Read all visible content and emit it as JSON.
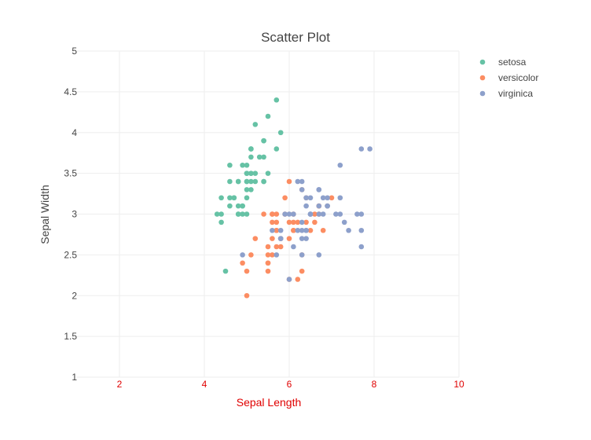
{
  "chart_data": {
    "type": "scatter",
    "title": "Scatter Plot",
    "xlabel": "Sepal Length",
    "ylabel": "Sepal Width",
    "xlim": [
      1,
      10
    ],
    "ylim": [
      1,
      5
    ],
    "x_ticks": [
      2,
      4,
      6,
      8,
      10
    ],
    "y_ticks": [
      1,
      1.5,
      2,
      2.5,
      3,
      3.5,
      4,
      4.5,
      5
    ],
    "x_axis_color": "#e00000",
    "grid": true,
    "legend_position": "top-right",
    "series": [
      {
        "name": "setosa",
        "color": "#66c2a5",
        "points": [
          [
            5.1,
            3.5
          ],
          [
            4.9,
            3.0
          ],
          [
            4.7,
            3.2
          ],
          [
            4.6,
            3.1
          ],
          [
            5.0,
            3.6
          ],
          [
            5.4,
            3.9
          ],
          [
            4.6,
            3.4
          ],
          [
            5.0,
            3.4
          ],
          [
            4.4,
            2.9
          ],
          [
            4.9,
            3.1
          ],
          [
            5.4,
            3.7
          ],
          [
            4.8,
            3.4
          ],
          [
            4.8,
            3.0
          ],
          [
            4.3,
            3.0
          ],
          [
            5.8,
            4.0
          ],
          [
            5.7,
            4.4
          ],
          [
            5.4,
            3.9
          ],
          [
            5.1,
            3.5
          ],
          [
            5.7,
            3.8
          ],
          [
            5.1,
            3.8
          ],
          [
            5.4,
            3.4
          ],
          [
            5.1,
            3.7
          ],
          [
            4.6,
            3.6
          ],
          [
            5.1,
            3.3
          ],
          [
            4.8,
            3.4
          ],
          [
            5.0,
            3.0
          ],
          [
            5.0,
            3.4
          ],
          [
            5.2,
            3.5
          ],
          [
            5.2,
            3.4
          ],
          [
            4.7,
            3.2
          ],
          [
            4.8,
            3.1
          ],
          [
            5.4,
            3.4
          ],
          [
            5.2,
            4.1
          ],
          [
            5.5,
            4.2
          ],
          [
            4.9,
            3.1
          ],
          [
            5.0,
            3.2
          ],
          [
            5.5,
            3.5
          ],
          [
            4.9,
            3.6
          ],
          [
            4.4,
            3.0
          ],
          [
            5.1,
            3.4
          ],
          [
            5.0,
            3.5
          ],
          [
            4.5,
            2.3
          ],
          [
            4.4,
            3.2
          ],
          [
            5.0,
            3.5
          ],
          [
            5.1,
            3.8
          ],
          [
            4.8,
            3.0
          ],
          [
            5.1,
            3.8
          ],
          [
            4.6,
            3.2
          ],
          [
            5.3,
            3.7
          ],
          [
            5.0,
            3.3
          ]
        ]
      },
      {
        "name": "versicolor",
        "color": "#fc8d62",
        "points": [
          [
            7.0,
            3.2
          ],
          [
            6.4,
            3.2
          ],
          [
            6.9,
            3.1
          ],
          [
            5.5,
            2.3
          ],
          [
            6.5,
            2.8
          ],
          [
            5.7,
            2.8
          ],
          [
            6.3,
            3.3
          ],
          [
            4.9,
            2.4
          ],
          [
            6.6,
            2.9
          ],
          [
            5.2,
            2.7
          ],
          [
            5.0,
            2.0
          ],
          [
            5.9,
            3.0
          ],
          [
            6.0,
            2.2
          ],
          [
            6.1,
            2.9
          ],
          [
            5.6,
            2.9
          ],
          [
            6.7,
            3.1
          ],
          [
            5.6,
            3.0
          ],
          [
            5.8,
            2.7
          ],
          [
            6.2,
            2.2
          ],
          [
            5.6,
            2.5
          ],
          [
            5.9,
            3.2
          ],
          [
            6.1,
            2.8
          ],
          [
            6.3,
            2.5
          ],
          [
            6.1,
            2.8
          ],
          [
            6.4,
            2.9
          ],
          [
            6.6,
            3.0
          ],
          [
            6.8,
            2.8
          ],
          [
            6.7,
            3.0
          ],
          [
            6.0,
            2.9
          ],
          [
            5.7,
            2.6
          ],
          [
            5.5,
            2.4
          ],
          [
            5.5,
            2.4
          ],
          [
            5.8,
            2.7
          ],
          [
            6.0,
            2.7
          ],
          [
            5.4,
            3.0
          ],
          [
            6.0,
            3.4
          ],
          [
            6.7,
            3.1
          ],
          [
            6.3,
            2.3
          ],
          [
            5.6,
            3.0
          ],
          [
            5.5,
            2.5
          ],
          [
            5.5,
            2.6
          ],
          [
            6.1,
            3.0
          ],
          [
            5.8,
            2.6
          ],
          [
            5.0,
            2.3
          ],
          [
            5.6,
            2.7
          ],
          [
            5.7,
            3.0
          ],
          [
            5.7,
            2.9
          ],
          [
            6.2,
            2.9
          ],
          [
            5.1,
            2.5
          ],
          [
            5.7,
            2.8
          ]
        ]
      },
      {
        "name": "virginica",
        "color": "#8da0cb",
        "points": [
          [
            6.3,
            3.3
          ],
          [
            5.8,
            2.7
          ],
          [
            7.1,
            3.0
          ],
          [
            6.3,
            2.9
          ],
          [
            6.5,
            3.0
          ],
          [
            7.6,
            3.0
          ],
          [
            4.9,
            2.5
          ],
          [
            7.3,
            2.9
          ],
          [
            6.7,
            2.5
          ],
          [
            7.2,
            3.6
          ],
          [
            6.5,
            3.2
          ],
          [
            6.4,
            2.7
          ],
          [
            6.8,
            3.0
          ],
          [
            5.7,
            2.5
          ],
          [
            5.8,
            2.8
          ],
          [
            6.4,
            3.2
          ],
          [
            6.5,
            3.0
          ],
          [
            7.7,
            3.8
          ],
          [
            7.7,
            2.6
          ],
          [
            6.0,
            2.2
          ],
          [
            6.9,
            3.2
          ],
          [
            5.6,
            2.8
          ],
          [
            7.7,
            2.8
          ],
          [
            6.3,
            2.7
          ],
          [
            6.7,
            3.3
          ],
          [
            7.2,
            3.2
          ],
          [
            6.2,
            2.8
          ],
          [
            6.1,
            3.0
          ],
          [
            6.4,
            2.8
          ],
          [
            7.2,
            3.0
          ],
          [
            7.4,
            2.8
          ],
          [
            7.9,
            3.8
          ],
          [
            6.4,
            2.8
          ],
          [
            6.3,
            2.8
          ],
          [
            6.1,
            2.6
          ],
          [
            7.7,
            3.0
          ],
          [
            6.3,
            3.4
          ],
          [
            6.4,
            3.1
          ],
          [
            6.0,
            3.0
          ],
          [
            6.9,
            3.1
          ],
          [
            6.7,
            3.1
          ],
          [
            6.9,
            3.1
          ],
          [
            5.8,
            2.7
          ],
          [
            6.8,
            3.2
          ],
          [
            6.7,
            3.3
          ],
          [
            6.7,
            3.0
          ],
          [
            6.3,
            2.5
          ],
          [
            6.5,
            3.0
          ],
          [
            6.2,
            3.4
          ],
          [
            5.9,
            3.0
          ]
        ]
      }
    ]
  }
}
